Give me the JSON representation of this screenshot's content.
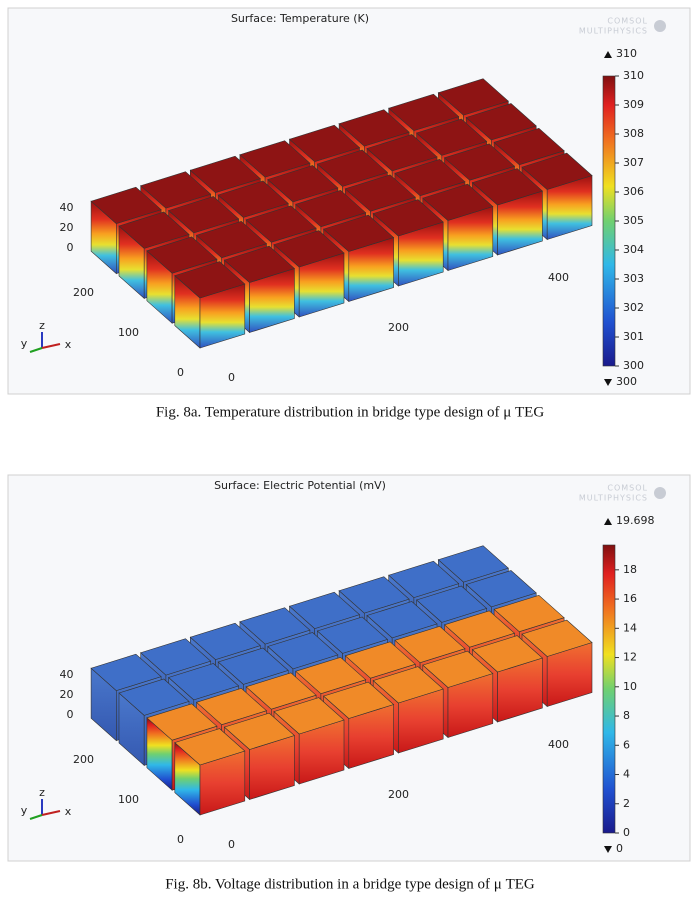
{
  "figures": [
    {
      "title": "Surface: Temperature (K)",
      "logo": [
        "COMSOL",
        "MULTIPHYSICS"
      ],
      "max": 310,
      "min": 300,
      "colorbar_ticks": [
        300,
        301,
        302,
        303,
        304,
        305,
        306,
        307,
        308,
        309,
        310
      ],
      "z_ticks": [
        0,
        20,
        40
      ],
      "y_ticks": [
        0,
        100,
        200
      ],
      "x_ticks": [
        0,
        200,
        400
      ],
      "axis_letters": [
        "z",
        "y",
        "x"
      ],
      "caption": "Fig. 8a. Temperature distribution in bridge type design of μ TEG"
    },
    {
      "title": "Surface: Electric Potential (mV)",
      "logo": [
        "COMSOL",
        "MULTIPHYSICS"
      ],
      "max": 19.698,
      "min": 0,
      "colorbar_ticks": [
        0,
        2,
        4,
        6,
        8,
        10,
        12,
        14,
        16,
        18
      ],
      "z_ticks": [
        0,
        20,
        40
      ],
      "y_ticks": [
        0,
        100,
        200
      ],
      "x_ticks": [
        0,
        200,
        400
      ],
      "axis_letters": [
        "z",
        "y",
        "x"
      ],
      "caption": "Fig. 8b. Voltage distribution in a bridge type design of μ TEG"
    }
  ]
}
